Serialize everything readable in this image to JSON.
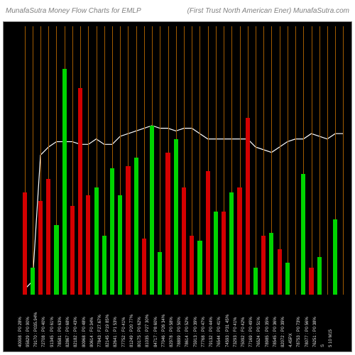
{
  "header": {
    "left": "MunafaSutra  Money Flow  Charts for EMLP",
    "right": "(First Trust North American  Ener) MunafaSutra.com",
    "text_color": "#808080",
    "bg_color": "#ffffff"
  },
  "chart": {
    "type": "bar-with-line",
    "background_color": "#000000",
    "grid_color": "#a05a00",
    "grid_count": 41,
    "line_color": "#ffffff",
    "line_width": 1.2,
    "bar_width_ratio": 0.55,
    "ylim": [
      0,
      100
    ],
    "bars": [
      {
        "value": 38,
        "color": "#d40000",
        "label": "40008 : P0 28%"
      },
      {
        "value": 10,
        "color": "#00d400",
        "label": "95829 : P0 90%"
      },
      {
        "value": 35,
        "color": "#d40000",
        "label": "79170 : P035.94%"
      },
      {
        "value": 43,
        "color": "#d40000",
        "label": "72708 : P0 40%"
      },
      {
        "value": 26,
        "color": "#00d400",
        "label": "91345 : P0 61%"
      },
      {
        "value": 84,
        "color": "#00d400",
        "label": "78581 : P0 63%"
      },
      {
        "value": 33,
        "color": "#d40000",
        "label": "82867 : P0 68%"
      },
      {
        "value": 77,
        "color": "#d40000",
        "label": "82182 : P0 43%"
      },
      {
        "value": 37,
        "color": "#d40000",
        "label": "80968 : P0 48%"
      },
      {
        "value": 40,
        "color": "#00d400",
        "label": "80614 : F0 34%"
      },
      {
        "value": 22,
        "color": "#00d400",
        "label": "77843 : F27.67%"
      },
      {
        "value": 47,
        "color": "#00d400",
        "label": "82145 : P19 85%"
      },
      {
        "value": 37,
        "color": "#00d400",
        "label": "82641 : P1 53%"
      },
      {
        "value": 48,
        "color": "#d40000",
        "label": "77752 : F0 41%"
      },
      {
        "value": 51,
        "color": "#00d400",
        "label": "81249 : P20 77%"
      },
      {
        "value": 21,
        "color": "#d40000",
        "label": "80175 : P0 62%"
      },
      {
        "value": 63,
        "color": "#00d400",
        "label": "81035 : P27 30%"
      },
      {
        "value": 16,
        "color": "#00d400",
        "label": "84717 : P8 60%"
      },
      {
        "value": 53,
        "color": "#d40000",
        "label": "77046 : P26 34%"
      },
      {
        "value": 58,
        "color": "#00d400",
        "label": "82978 : P0 58%"
      },
      {
        "value": 40,
        "color": "#d40000",
        "label": "78899 : P0 50%"
      },
      {
        "value": 22,
        "color": "#d40000",
        "label": "78614 : P0 52%"
      },
      {
        "value": 20,
        "color": "#00d400",
        "label": "75913 : P0 39%"
      },
      {
        "value": 46,
        "color": "#d40000",
        "label": "77768 : P0 47%"
      },
      {
        "value": 31,
        "color": "#00d400",
        "label": "79132 : P0 44%"
      },
      {
        "value": 31,
        "color": "#d40000",
        "label": "76544 : P0 41%"
      },
      {
        "value": 38,
        "color": "#00d400",
        "label": "74593 : P31 45%"
      },
      {
        "value": 40,
        "color": "#d40000",
        "label": "73293 : F0 41%"
      },
      {
        "value": 66,
        "color": "#d40000",
        "label": "75092 : F0 42%"
      },
      {
        "value": 10,
        "color": "#00d400",
        "label": "77169 : P0 49%"
      },
      {
        "value": 22,
        "color": "#d40000",
        "label": "76524 : P0 51%"
      },
      {
        "value": 23,
        "color": "#00d400",
        "label": "78985 : P0 35%"
      },
      {
        "value": 17,
        "color": "#d40000",
        "label": "78545 : P0 36%"
      },
      {
        "value": 12,
        "color": "#00d400",
        "label": "82072 : P0 39%"
      },
      {
        "value": 0,
        "color": "#00d400",
        "label": "4.45PX"
      },
      {
        "value": 45,
        "color": "#00d400",
        "label": "78753 : P0 73%"
      },
      {
        "value": 10,
        "color": "#d40000",
        "label": "78077 : P0 56%"
      },
      {
        "value": 14,
        "color": "#00d400",
        "label": "76251 : P0 38%"
      },
      {
        "value": 0,
        "color": "#00d400",
        "label": "S"
      },
      {
        "value": 28,
        "color": "#00d400",
        "label": "5 10 M15"
      },
      {
        "value": 0,
        "color": "#00d400",
        "label": ""
      }
    ],
    "line_points": [
      2,
      5,
      52,
      55,
      57,
      57,
      57,
      56,
      56,
      58,
      56,
      56,
      59,
      60,
      61,
      62,
      63,
      62,
      62,
      61,
      62,
      62,
      60,
      58,
      58,
      58,
      58,
      58,
      58,
      55,
      54,
      53,
      55,
      57,
      58,
      58,
      60,
      59,
      58,
      60,
      60
    ],
    "xlabel_color": "#dddddd",
    "xlabel_fontsize": 6
  }
}
